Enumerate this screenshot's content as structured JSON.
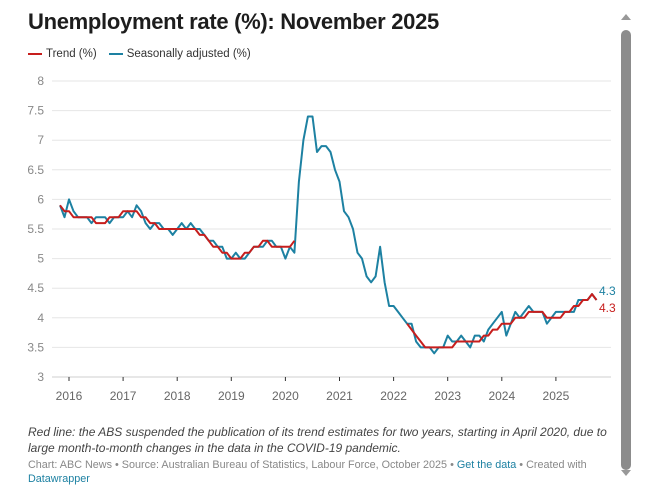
{
  "title": "Unemployment rate (%): November 2025",
  "notes": "Red line: the ABS suspended the publication of its trend estimates for two years, starting in April 2020, due to large month-to-month changes in the data in the COVID-19 pandemic.",
  "footer": {
    "prefix": "Chart: ABC News • Source: Australian Bureau of Statistics, Labour Force, October 2025 • ",
    "get_data": "Get the data",
    "middle": " • Created with ",
    "datawrapper": "Datawrapper"
  },
  "chart_data": {
    "type": "line",
    "title": "Unemployment rate (%): November 2025",
    "xlabel": "",
    "ylabel": "",
    "ylim": [
      3,
      8
    ],
    "yticks": [
      "3",
      "3.5",
      "4",
      "4.5",
      "5",
      "5.5",
      "6",
      "6.5",
      "7",
      "7.5",
      "8"
    ],
    "xticks": [
      "2016",
      "2017",
      "2018",
      "2019",
      "2020",
      "2021",
      "2022",
      "2023",
      "2024",
      "2025"
    ],
    "x_start": "2015-11",
    "x_end": "2025-10",
    "frequency": "monthly",
    "grid": true,
    "legend_position": "top-left",
    "series": [
      {
        "name": "Trend (%)",
        "color": "#c71e1d",
        "end_label": "4.3",
        "values": [
          5.9,
          5.8,
          5.8,
          5.7,
          5.7,
          5.7,
          5.7,
          5.7,
          5.6,
          5.6,
          5.6,
          5.7,
          5.7,
          5.7,
          5.8,
          5.8,
          5.8,
          5.8,
          5.7,
          5.7,
          5.6,
          5.6,
          5.5,
          5.5,
          5.5,
          5.5,
          5.5,
          5.5,
          5.5,
          5.5,
          5.5,
          5.4,
          5.4,
          5.3,
          5.2,
          5.2,
          5.1,
          5.1,
          5.0,
          5.0,
          5.0,
          5.1,
          5.1,
          5.2,
          5.2,
          5.3,
          5.3,
          5.2,
          5.2,
          5.2,
          5.2,
          5.2,
          5.3,
          null,
          null,
          null,
          null,
          null,
          null,
          null,
          null,
          null,
          null,
          null,
          null,
          null,
          null,
          null,
          null,
          null,
          null,
          null,
          null,
          null,
          null,
          null,
          null,
          3.9,
          3.8,
          3.7,
          3.6,
          3.5,
          3.5,
          3.5,
          3.5,
          3.5,
          3.5,
          3.5,
          3.6,
          3.6,
          3.6,
          3.6,
          3.6,
          3.6,
          3.7,
          3.7,
          3.8,
          3.8,
          3.9,
          3.9,
          3.9,
          4.0,
          4.0,
          4.0,
          4.1,
          4.1,
          4.1,
          4.1,
          4.0,
          4.0,
          4.0,
          4.0,
          4.1,
          4.1,
          4.2,
          4.2,
          4.3,
          4.3,
          4.4,
          4.3
        ]
      },
      {
        "name": "Seasonally adjusted (%)",
        "color": "#1d81a2",
        "end_label": "4.3",
        "values": [
          5.9,
          5.7,
          6.0,
          5.8,
          5.7,
          5.7,
          5.7,
          5.6,
          5.7,
          5.7,
          5.7,
          5.6,
          5.7,
          5.7,
          5.7,
          5.8,
          5.7,
          5.9,
          5.8,
          5.6,
          5.5,
          5.6,
          5.6,
          5.5,
          5.5,
          5.4,
          5.5,
          5.6,
          5.5,
          5.6,
          5.5,
          5.5,
          5.4,
          5.3,
          5.3,
          5.2,
          5.2,
          5.0,
          5.0,
          5.1,
          5.0,
          5.0,
          5.1,
          5.2,
          5.2,
          5.2,
          5.3,
          5.3,
          5.2,
          5.2,
          5.0,
          5.2,
          5.1,
          6.3,
          7.0,
          7.4,
          7.4,
          6.8,
          6.9,
          6.9,
          6.8,
          6.5,
          6.3,
          5.8,
          5.7,
          5.5,
          5.1,
          5.0,
          4.7,
          4.6,
          4.7,
          5.2,
          4.6,
          4.2,
          4.2,
          4.1,
          4.0,
          3.9,
          3.9,
          3.6,
          3.5,
          3.5,
          3.5,
          3.4,
          3.5,
          3.5,
          3.7,
          3.6,
          3.6,
          3.7,
          3.6,
          3.5,
          3.7,
          3.7,
          3.6,
          3.8,
          3.9,
          4.0,
          4.1,
          3.7,
          3.9,
          4.1,
          4.0,
          4.1,
          4.2,
          4.1,
          4.1,
          4.1,
          3.9,
          4.0,
          4.1,
          4.1,
          4.1,
          4.1,
          4.1,
          4.3,
          4.3,
          4.3,
          4.4,
          4.3
        ]
      }
    ]
  }
}
